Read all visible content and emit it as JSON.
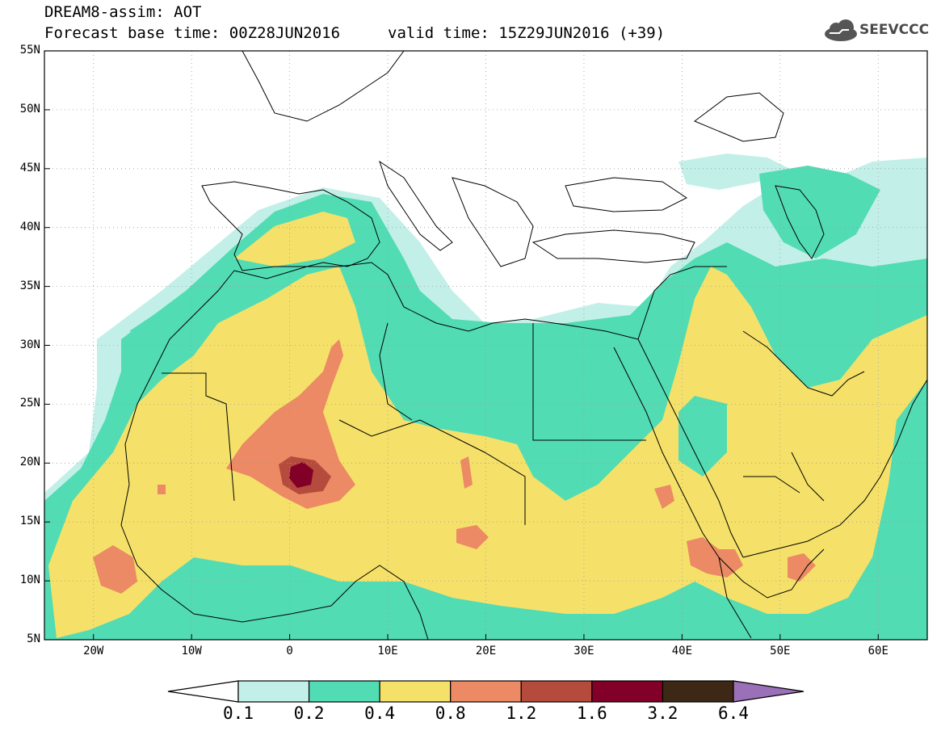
{
  "header": {
    "title_line1": "DREAM8-assim: AOT",
    "title_line2": "Forecast base time: 00Z28JUN2016",
    "valid_time": "valid time: 15Z29JUN2016 (+39)"
  },
  "logo": {
    "text": "SEEVCCC",
    "icon": "cloud-icon"
  },
  "map": {
    "lon_range": [
      -25,
      65
    ],
    "lat_range": [
      5,
      55
    ],
    "lat_labels": [
      {
        "lat": 55,
        "label": "55N"
      },
      {
        "lat": 50,
        "label": "50N"
      },
      {
        "lat": 45,
        "label": "45N"
      },
      {
        "lat": 40,
        "label": "40N"
      },
      {
        "lat": 35,
        "label": "35N"
      },
      {
        "lat": 30,
        "label": "30N"
      },
      {
        "lat": 25,
        "label": "25N"
      },
      {
        "lat": 20,
        "label": "20N"
      },
      {
        "lat": 15,
        "label": "15N"
      },
      {
        "lat": 10,
        "label": "10N"
      },
      {
        "lat": 5,
        "label": "5N"
      }
    ],
    "lon_labels": [
      {
        "lon": -20,
        "label": "20W"
      },
      {
        "lon": -10,
        "label": "10W"
      },
      {
        "lon": 0,
        "label": "0"
      },
      {
        "lon": 10,
        "label": "10E"
      },
      {
        "lon": 20,
        "label": "20E"
      },
      {
        "lon": 30,
        "label": "30E"
      },
      {
        "lon": 40,
        "label": "40E"
      },
      {
        "lon": 50,
        "label": "50E"
      },
      {
        "lon": 60,
        "label": "60E"
      }
    ]
  },
  "colorbar": {
    "colors": [
      "#ffffff",
      "#c2f0e8",
      "#52dcb4",
      "#f5e169",
      "#eb8a64",
      "#b44b3c",
      "#820028",
      "#3c2814",
      "#9a70b8"
    ],
    "labels": [
      "0.1",
      "0.2",
      "0.4",
      "0.8",
      "1.2",
      "1.6",
      "3.2",
      "6.4"
    ]
  },
  "palette": {
    "land_outline": "#000000",
    "grid": "#9a9a9a"
  }
}
